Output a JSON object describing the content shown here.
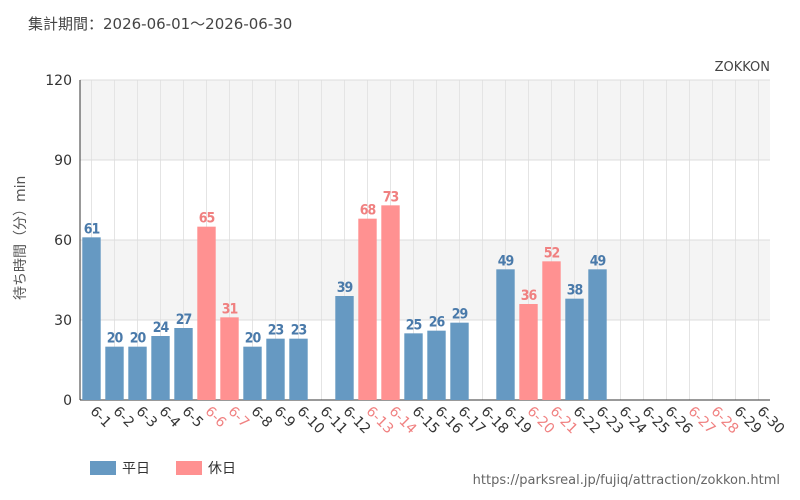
{
  "title": "集計期間：2026-06-01～2026-06-30",
  "attraction_name": "ZOKKON",
  "source_url": "https://parksreal.jp/fujiq/attraction/zokkon.html",
  "colors": {
    "weekday": "#6699c2",
    "holiday": "#ff9191",
    "holiday_label": "#f08080",
    "weekday_label": "#4a7aaa"
  },
  "chart_data": {
    "type": "bar",
    "title": "",
    "xlabel": "",
    "ylabel": "待ち時間（分）min",
    "ylim": [
      0,
      120
    ],
    "yticks": [
      0,
      30,
      60,
      90,
      120
    ],
    "grid": true,
    "legend_position": "bottom-left",
    "legend": [
      {
        "name": "平日",
        "color": "#6699c2"
      },
      {
        "name": "休日",
        "color": "#ff9191"
      }
    ],
    "categories": [
      "6-1",
      "6-2",
      "6-3",
      "6-4",
      "6-5",
      "6-6",
      "6-7",
      "6-8",
      "6-9",
      "6-10",
      "6-11",
      "6-12",
      "6-13",
      "6-14",
      "6-15",
      "6-16",
      "6-17",
      "6-18",
      "6-19",
      "6-20",
      "6-21",
      "6-22",
      "6-23",
      "6-24",
      "6-25",
      "6-26",
      "6-27",
      "6-28",
      "6-29",
      "6-30"
    ],
    "day_type": [
      "weekday",
      "weekday",
      "weekday",
      "weekday",
      "weekday",
      "holiday",
      "holiday",
      "weekday",
      "weekday",
      "weekday",
      "weekday",
      "weekday",
      "holiday",
      "holiday",
      "weekday",
      "weekday",
      "weekday",
      "weekday",
      "weekday",
      "holiday",
      "holiday",
      "weekday",
      "weekday",
      "weekday",
      "weekday",
      "weekday",
      "holiday",
      "holiday",
      "weekday",
      "weekday"
    ],
    "values": [
      61,
      20,
      20,
      24,
      27,
      65,
      31,
      20,
      23,
      23,
      null,
      39,
      68,
      73,
      25,
      26,
      29,
      null,
      49,
      36,
      52,
      38,
      49,
      null,
      null,
      null,
      null,
      null,
      null,
      null
    ]
  }
}
